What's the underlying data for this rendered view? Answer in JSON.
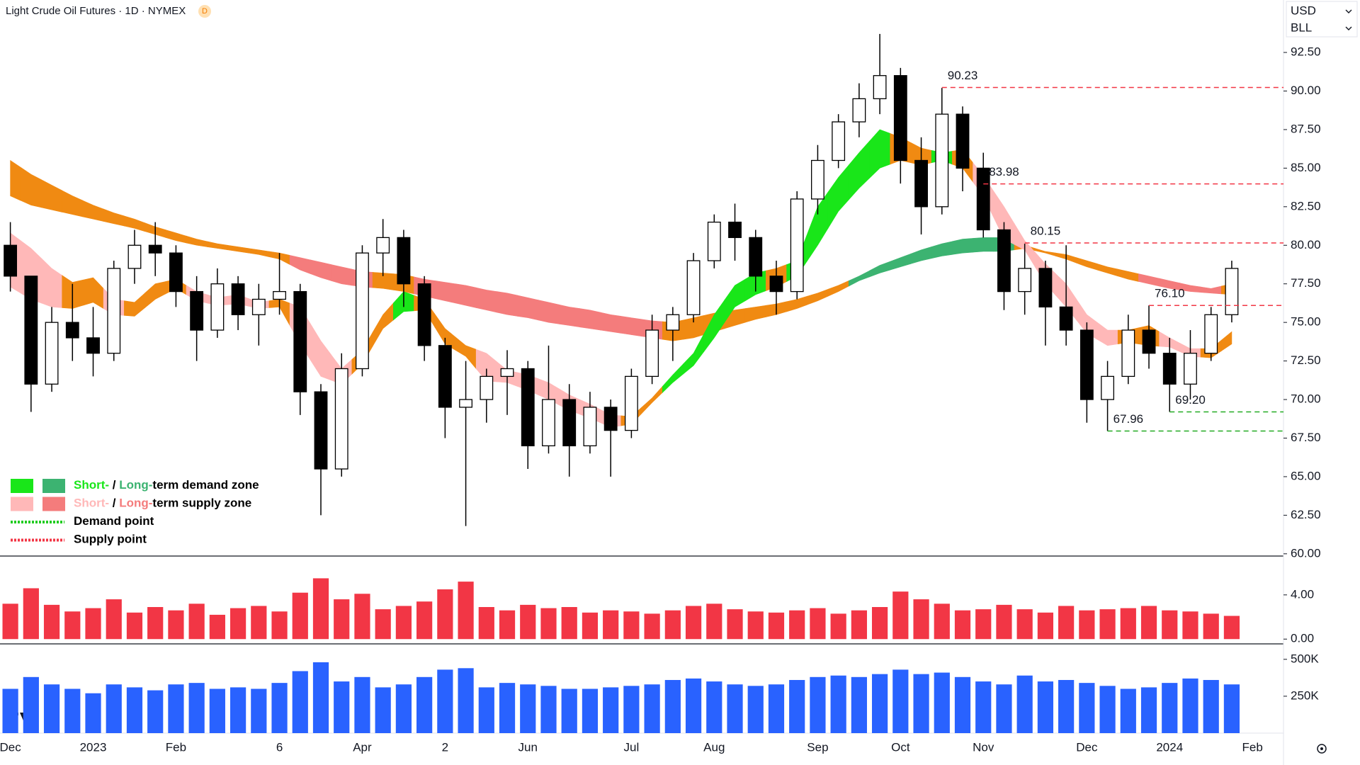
{
  "chart_data": {
    "type": "candlestick",
    "title": "Light Crude Oil Futures · 1D · NYMEX",
    "badge": "D",
    "currency": "USD",
    "unit": "BLL",
    "categories": [
      "Dec",
      null,
      null,
      null,
      "2023",
      null,
      null,
      null,
      "Feb",
      null,
      null,
      null,
      null,
      "6",
      null,
      null,
      null,
      "Apr",
      null,
      null,
      null,
      "2",
      null,
      null,
      null,
      "Jun",
      null,
      null,
      null,
      null,
      "Jul",
      null,
      null,
      null,
      "Aug",
      null,
      null,
      null,
      null,
      "Sep",
      null,
      null,
      null,
      "Oct",
      null,
      null,
      null,
      "Nov",
      null,
      null,
      null,
      null,
      "Dec",
      null,
      null,
      null,
      "2024",
      null,
      null,
      null,
      "Feb",
      null
    ],
    "open": [
      80,
      78,
      71,
      75,
      74,
      73,
      78.5,
      80,
      79.5,
      77,
      74.5,
      77.5,
      75.5,
      76.5,
      77,
      70.5,
      65.5,
      72,
      79.5,
      80.5,
      77.5,
      73.5,
      69.5,
      70,
      71.5,
      72,
      67,
      70,
      67,
      69.5,
      68,
      71.5,
      74.5,
      75.5,
      79,
      81.5,
      80.5,
      78,
      77,
      83,
      85.5,
      88,
      89.5,
      91,
      85.5,
      82.5,
      88.5,
      85,
      81,
      77,
      78.5,
      76,
      74.5,
      70,
      71.5,
      74.5,
      73,
      71,
      73,
      75.5,
      null,
      null
    ],
    "high": [
      81.5,
      78,
      76,
      77.5,
      76,
      79,
      81,
      81.5,
      80,
      78,
      78.5,
      78,
      77.5,
      79.5,
      77.5,
      71,
      73,
      80,
      81.7,
      81,
      78,
      74,
      72.5,
      72,
      73.2,
      72.5,
      73.5,
      71,
      70.5,
      70,
      72,
      75.5,
      76,
      79.5,
      82,
      82.7,
      81,
      79,
      83.5,
      86.5,
      88.5,
      90.5,
      93.7,
      91.5,
      87,
      90.2,
      89,
      86,
      81.5,
      80.1,
      79,
      80,
      75,
      72.5,
      75.5,
      76.1,
      74,
      74.5,
      76,
      79,
      null,
      null
    ],
    "low": [
      77,
      69.2,
      70.5,
      72.5,
      71.5,
      72.5,
      77.5,
      78,
      76,
      72.5,
      74,
      74.5,
      73.5,
      75.5,
      69,
      62.5,
      65,
      71.5,
      78,
      76,
      72.5,
      67.5,
      61.8,
      68.5,
      69,
      65.5,
      66.5,
      65,
      66.5,
      65,
      67.5,
      71,
      72.5,
      75,
      78.5,
      79,
      77,
      75.5,
      76.5,
      82,
      85,
      87,
      88.5,
      84,
      80.7,
      82,
      83.5,
      80.5,
      75.8,
      75.5,
      73.5,
      73.5,
      68.5,
      67.96,
      71,
      72,
      69.2,
      70,
      72.5,
      75,
      null,
      null
    ],
    "close": [
      78,
      71,
      75,
      74,
      73,
      78.5,
      80,
      79.5,
      77,
      74.5,
      77.5,
      75.5,
      76.5,
      77,
      70.5,
      65.5,
      72,
      79.5,
      80.5,
      77.5,
      73.5,
      69.5,
      70,
      71.5,
      72,
      67,
      70,
      67,
      69.5,
      68,
      71.5,
      74.5,
      75.5,
      79,
      81.5,
      80.5,
      78,
      77,
      83,
      85.5,
      88,
      89.5,
      91,
      85.5,
      82.5,
      88.5,
      85,
      81,
      77,
      78.5,
      76,
      74.5,
      70,
      71.5,
      74.5,
      73,
      71,
      73,
      75.5,
      78.5,
      null,
      null
    ],
    "up_color": "#ffffff",
    "down_color": "#000000",
    "ylim": [
      59.9,
      95.9
    ],
    "yticks": [
      {
        "value": 60,
        "label": "60.00"
      },
      {
        "value": 62.5,
        "label": "62.50"
      },
      {
        "value": 65,
        "label": "65.00"
      },
      {
        "value": 67.5,
        "label": "67.50"
      },
      {
        "value": 70,
        "label": "70.00"
      },
      {
        "value": 72.5,
        "label": "72.50"
      },
      {
        "value": 75,
        "label": "75.00"
      },
      {
        "value": 77.5,
        "label": "77.50"
      },
      {
        "value": 80,
        "label": "80.00"
      },
      {
        "value": 82.5,
        "label": "82.50"
      },
      {
        "value": 85,
        "label": "85.00"
      },
      {
        "value": 87.5,
        "label": "87.50"
      },
      {
        "value": 90,
        "label": "90.00"
      },
      {
        "value": 92.5,
        "label": "92.50"
      }
    ],
    "bands": [
      {
        "upper": [
          85.5,
          84.6,
          83.9,
          83.2,
          82.6,
          82.1,
          81.7,
          81.2,
          80.8,
          80.4,
          80.1,
          79.9,
          79.7,
          79.5,
          79.2,
          78.9,
          78.6,
          78.3,
          78.2,
          78.1,
          77.8,
          77.6,
          77.4,
          77.1,
          76.9,
          76.6,
          76.3,
          76,
          75.8,
          75.5,
          75.3,
          75.1,
          75,
          75.3,
          75.6,
          75.8,
          76,
          76.2,
          76.5,
          76.9,
          77.4,
          78,
          78.7,
          79.2,
          79.7,
          80.1,
          80.4,
          80.5,
          80.5,
          80,
          79.6,
          79.4,
          79,
          78.6,
          78.3,
          78,
          77.7,
          77.4,
          77.2,
          77.5,
          null,
          null
        ],
        "lower": [
          83.2,
          82.6,
          82.3,
          82,
          81.7,
          81.4,
          81.1,
          80.7,
          80.3,
          80,
          79.8,
          79.6,
          79.4,
          79.1,
          78.4,
          77.9,
          77.5,
          77.3,
          77.2,
          77,
          76.7,
          76.4,
          76.1,
          75.8,
          75.5,
          75.3,
          75,
          74.8,
          74.6,
          74.4,
          74.2,
          74,
          73.8,
          74,
          74.4,
          74.8,
          75.2,
          75.5,
          75.9,
          76.4,
          77,
          77.7,
          78.2,
          78.6,
          79,
          79.3,
          79.5,
          79.6,
          79.6,
          79.8,
          79.5,
          79.1,
          78.6,
          78.2,
          77.8,
          77.5,
          77.2,
          77,
          76.9,
          76.8,
          null,
          null
        ],
        "colors": [
          "#f08a12",
          "#f08a12",
          "#f08a12",
          "#f08a12",
          "#f08a12",
          "#f08a12",
          "#f08a12",
          "#f08a12",
          "#f08a12",
          "#f08a12",
          "#f08a12",
          "#f08a12",
          "#f08a12",
          "#f08a12",
          "#f47c7c",
          "#f47c7c",
          "#f47c7c",
          "#f47c7c",
          "#f08a12",
          "#f08a12",
          "#f47c7c",
          "#f47c7c",
          "#f47c7c",
          "#f47c7c",
          "#f47c7c",
          "#f47c7c",
          "#f47c7c",
          "#f47c7c",
          "#f47c7c",
          "#f47c7c",
          "#f47c7c",
          "#f47c7c",
          "#f08a12",
          "#f08a12",
          "#f08a12",
          "#f08a12",
          "#f08a12",
          "#f08a12",
          "#f08a12",
          "#f08a12",
          "#f08a12",
          "#3cb371",
          "#3cb371",
          "#3cb371",
          "#3cb371",
          "#3cb371",
          "#3cb371",
          "#3cb371",
          "#3cb371",
          "#f08a12",
          "#f08a12",
          "#f08a12",
          "#f08a12",
          "#f08a12",
          "#f08a12",
          "#f47c7c",
          "#f47c7c",
          "#f47c7c",
          "#f47c7c",
          "#f08a12",
          null,
          null
        ]
      },
      {
        "upper": [
          80.8,
          79.8,
          78.5,
          77.6,
          77.9,
          76.5,
          76.3,
          77.5,
          77.8,
          77,
          76.6,
          76.8,
          76.3,
          76.5,
          76,
          73.8,
          72,
          73.2,
          75.5,
          77,
          76.5,
          74.6,
          73.5,
          73,
          71.9,
          71.6,
          71.1,
          70.3,
          69.7,
          69,
          68.9,
          70.1,
          71.6,
          73,
          75.5,
          77.4,
          78.2,
          78.5,
          79,
          82.5,
          84.4,
          86,
          87.5,
          87,
          86.3,
          86,
          86.2,
          84.5,
          82.5,
          80.3,
          78.8,
          77.5,
          75.5,
          74.5,
          74.5,
          74.8,
          74,
          73.3,
          73.3,
          74.4,
          null,
          null
        ],
        "lower": [
          77.3,
          76.5,
          76,
          75.9,
          76.3,
          75.5,
          75.4,
          76.5,
          77.2,
          76.4,
          76.1,
          76.2,
          75.9,
          76,
          73.6,
          71.5,
          71,
          72.3,
          74.6,
          75.7,
          75.8,
          73.6,
          72.8,
          71.2,
          71.1,
          70.6,
          70,
          69.3,
          68.8,
          68.2,
          68.4,
          69.8,
          71.1,
          72.2,
          74,
          76,
          76.8,
          77.3,
          78,
          80,
          82.2,
          83.7,
          85,
          85.5,
          85.2,
          85.5,
          85,
          83.2,
          80.4,
          79.7,
          77.5,
          76,
          74.3,
          73.5,
          73.7,
          73.5,
          73.4,
          72.8,
          72.7,
          73.6,
          null,
          null
        ],
        "colors": [
          "#ffb8b8",
          "#ffb8b8",
          "#ffb8b8",
          "#f08a12",
          "#f08a12",
          "#ffb8b8",
          "#f08a12",
          "#f08a12",
          "#f08a12",
          "#ffb8b8",
          "#ffb8b8",
          "#ffb8b8",
          "#ffb8b8",
          "#f08a12",
          "#ffb8b8",
          "#ffb8b8",
          "#ffb8b8",
          "#f08a12",
          "#f08a12",
          "#19e619",
          "#f08a12",
          "#f08a12",
          "#f08a12",
          "#ffb8b8",
          "#ffb8b8",
          "#ffb8b8",
          "#ffb8b8",
          "#ffb8b8",
          "#ffb8b8",
          "#ffb8b8",
          "#f08a12",
          "#f08a12",
          "#19e619",
          "#19e619",
          "#19e619",
          "#19e619",
          "#19e619",
          "#f08a12",
          "#19e619",
          "#19e619",
          "#19e619",
          "#19e619",
          "#19e619",
          "#f08a12",
          "#f08a12",
          "#19e619",
          "#f08a12",
          "#ffb8b8",
          "#ffb8b8",
          "#ffb8b8",
          "#ffb8b8",
          "#ffb8b8",
          "#ffb8b8",
          "#ffb8b8",
          "#f08a12",
          "#f08a12",
          "#ffb8b8",
          "#ffb8b8",
          "#f08a12",
          "#f08a12",
          null,
          null
        ]
      }
    ],
    "levels": [
      {
        "value": 90.23,
        "label": "90.23",
        "x": 45,
        "color": "#f23645"
      },
      {
        "value": 83.98,
        "label": "83.98",
        "x": 47,
        "color": "#f23645"
      },
      {
        "value": 80.15,
        "label": "80.15",
        "x": 49,
        "color": "#f23645"
      },
      {
        "value": 76.1,
        "label": "76.10",
        "x": 55,
        "color": "#f23645"
      },
      {
        "value": 67.96,
        "label": "67.96",
        "x": 53,
        "color": "#22ab22"
      },
      {
        "value": 69.2,
        "label": "69.20",
        "x": 56,
        "color": "#22ab22"
      }
    ],
    "legend": [
      {
        "swatches": [
          "#19e619",
          "#3cb371"
        ],
        "parts": [
          {
            "text": "Short-",
            "color": "#19e619"
          },
          {
            "text": " / ",
            "color": "#000000"
          },
          {
            "text": "Long-",
            "color": "#3cb371"
          },
          {
            "text": "term demand zone",
            "color": "#000000"
          }
        ]
      },
      {
        "swatches": [
          "#ffb8b8",
          "#f47c7c"
        ],
        "parts": [
          {
            "text": "Short-",
            "color": "#ffb8b8"
          },
          {
            "text": " / ",
            "color": "#000000"
          },
          {
            "text": "Long-",
            "color": "#f47c7c"
          },
          {
            "text": "term supply zone",
            "color": "#000000"
          }
        ]
      },
      {
        "line": "#22cc22",
        "parts": [
          {
            "text": "Demand point",
            "color": "#000000"
          }
        ]
      },
      {
        "line": "#f23645",
        "parts": [
          {
            "text": "Supply point",
            "color": "#000000"
          }
        ]
      }
    ],
    "indicator": {
      "color": "#f23645",
      "values": [
        3.2,
        4.6,
        3.1,
        2.5,
        2.8,
        3.6,
        2.4,
        2.9,
        2.6,
        3.2,
        2.2,
        2.8,
        3,
        2.5,
        4.2,
        5.5,
        3.6,
        4.1,
        2.7,
        3,
        3.4,
        4.5,
        5.2,
        2.9,
        2.6,
        3.1,
        2.8,
        2.9,
        2.4,
        2.6,
        2.5,
        2.3,
        2.6,
        3,
        3.2,
        2.7,
        2.5,
        2.4,
        2.6,
        2.8,
        2.3,
        2.6,
        2.9,
        4.3,
        3.6,
        3.2,
        2.6,
        2.7,
        3.1,
        2.7,
        2.4,
        3,
        2.6,
        2.7,
        2.8,
        3,
        2.6,
        2.5,
        2.3,
        2.1,
        null,
        null
      ],
      "ylim": [
        -0.24,
        7.45
      ],
      "yticks": [
        {
          "value": 0,
          "label": "0.00"
        },
        {
          "value": 4,
          "label": "4.00"
        }
      ]
    },
    "volume": {
      "color": "#2962ff",
      "values": [
        300000,
        380000,
        330000,
        300000,
        270000,
        330000,
        310000,
        290000,
        330000,
        340000,
        300000,
        310000,
        300000,
        340000,
        420000,
        480000,
        350000,
        380000,
        310000,
        330000,
        380000,
        430000,
        440000,
        310000,
        340000,
        330000,
        320000,
        300000,
        300000,
        310000,
        320000,
        330000,
        360000,
        370000,
        350000,
        330000,
        320000,
        330000,
        360000,
        380000,
        390000,
        380000,
        400000,
        430000,
        400000,
        410000,
        380000,
        350000,
        330000,
        390000,
        350000,
        360000,
        340000,
        320000,
        300000,
        310000,
        340000,
        370000,
        360000,
        330000,
        null,
        null
      ],
      "ylim": [
        0,
        595000
      ],
      "yticks": [
        {
          "value": 250000,
          "label": "250K"
        },
        {
          "value": 500000,
          "label": "500K"
        }
      ]
    }
  }
}
